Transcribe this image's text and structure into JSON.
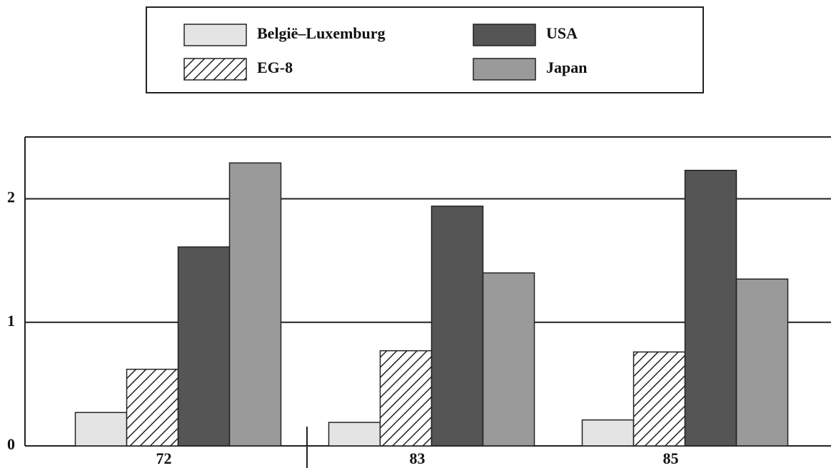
{
  "chart_data": {
    "type": "bar",
    "categories": [
      "72",
      "83",
      "85"
    ],
    "series": [
      {
        "name": "België–Luxemburg",
        "color": "#e4e4e4",
        "values": [
          0.27,
          0.19,
          0.21
        ]
      },
      {
        "name": "EG-8",
        "color": "#ffffff",
        "pattern": "diagonal",
        "values": [
          0.62,
          0.77,
          0.76
        ]
      },
      {
        "name": "USA",
        "color": "#555555",
        "values": [
          1.61,
          1.94,
          2.23
        ]
      },
      {
        "name": "Japan",
        "color": "#9a9a9a",
        "values": [
          2.29,
          1.4,
          1.35
        ]
      }
    ],
    "ylim": [
      0,
      2.5
    ],
    "yticks": [
      0,
      1,
      2
    ],
    "grid": true
  }
}
